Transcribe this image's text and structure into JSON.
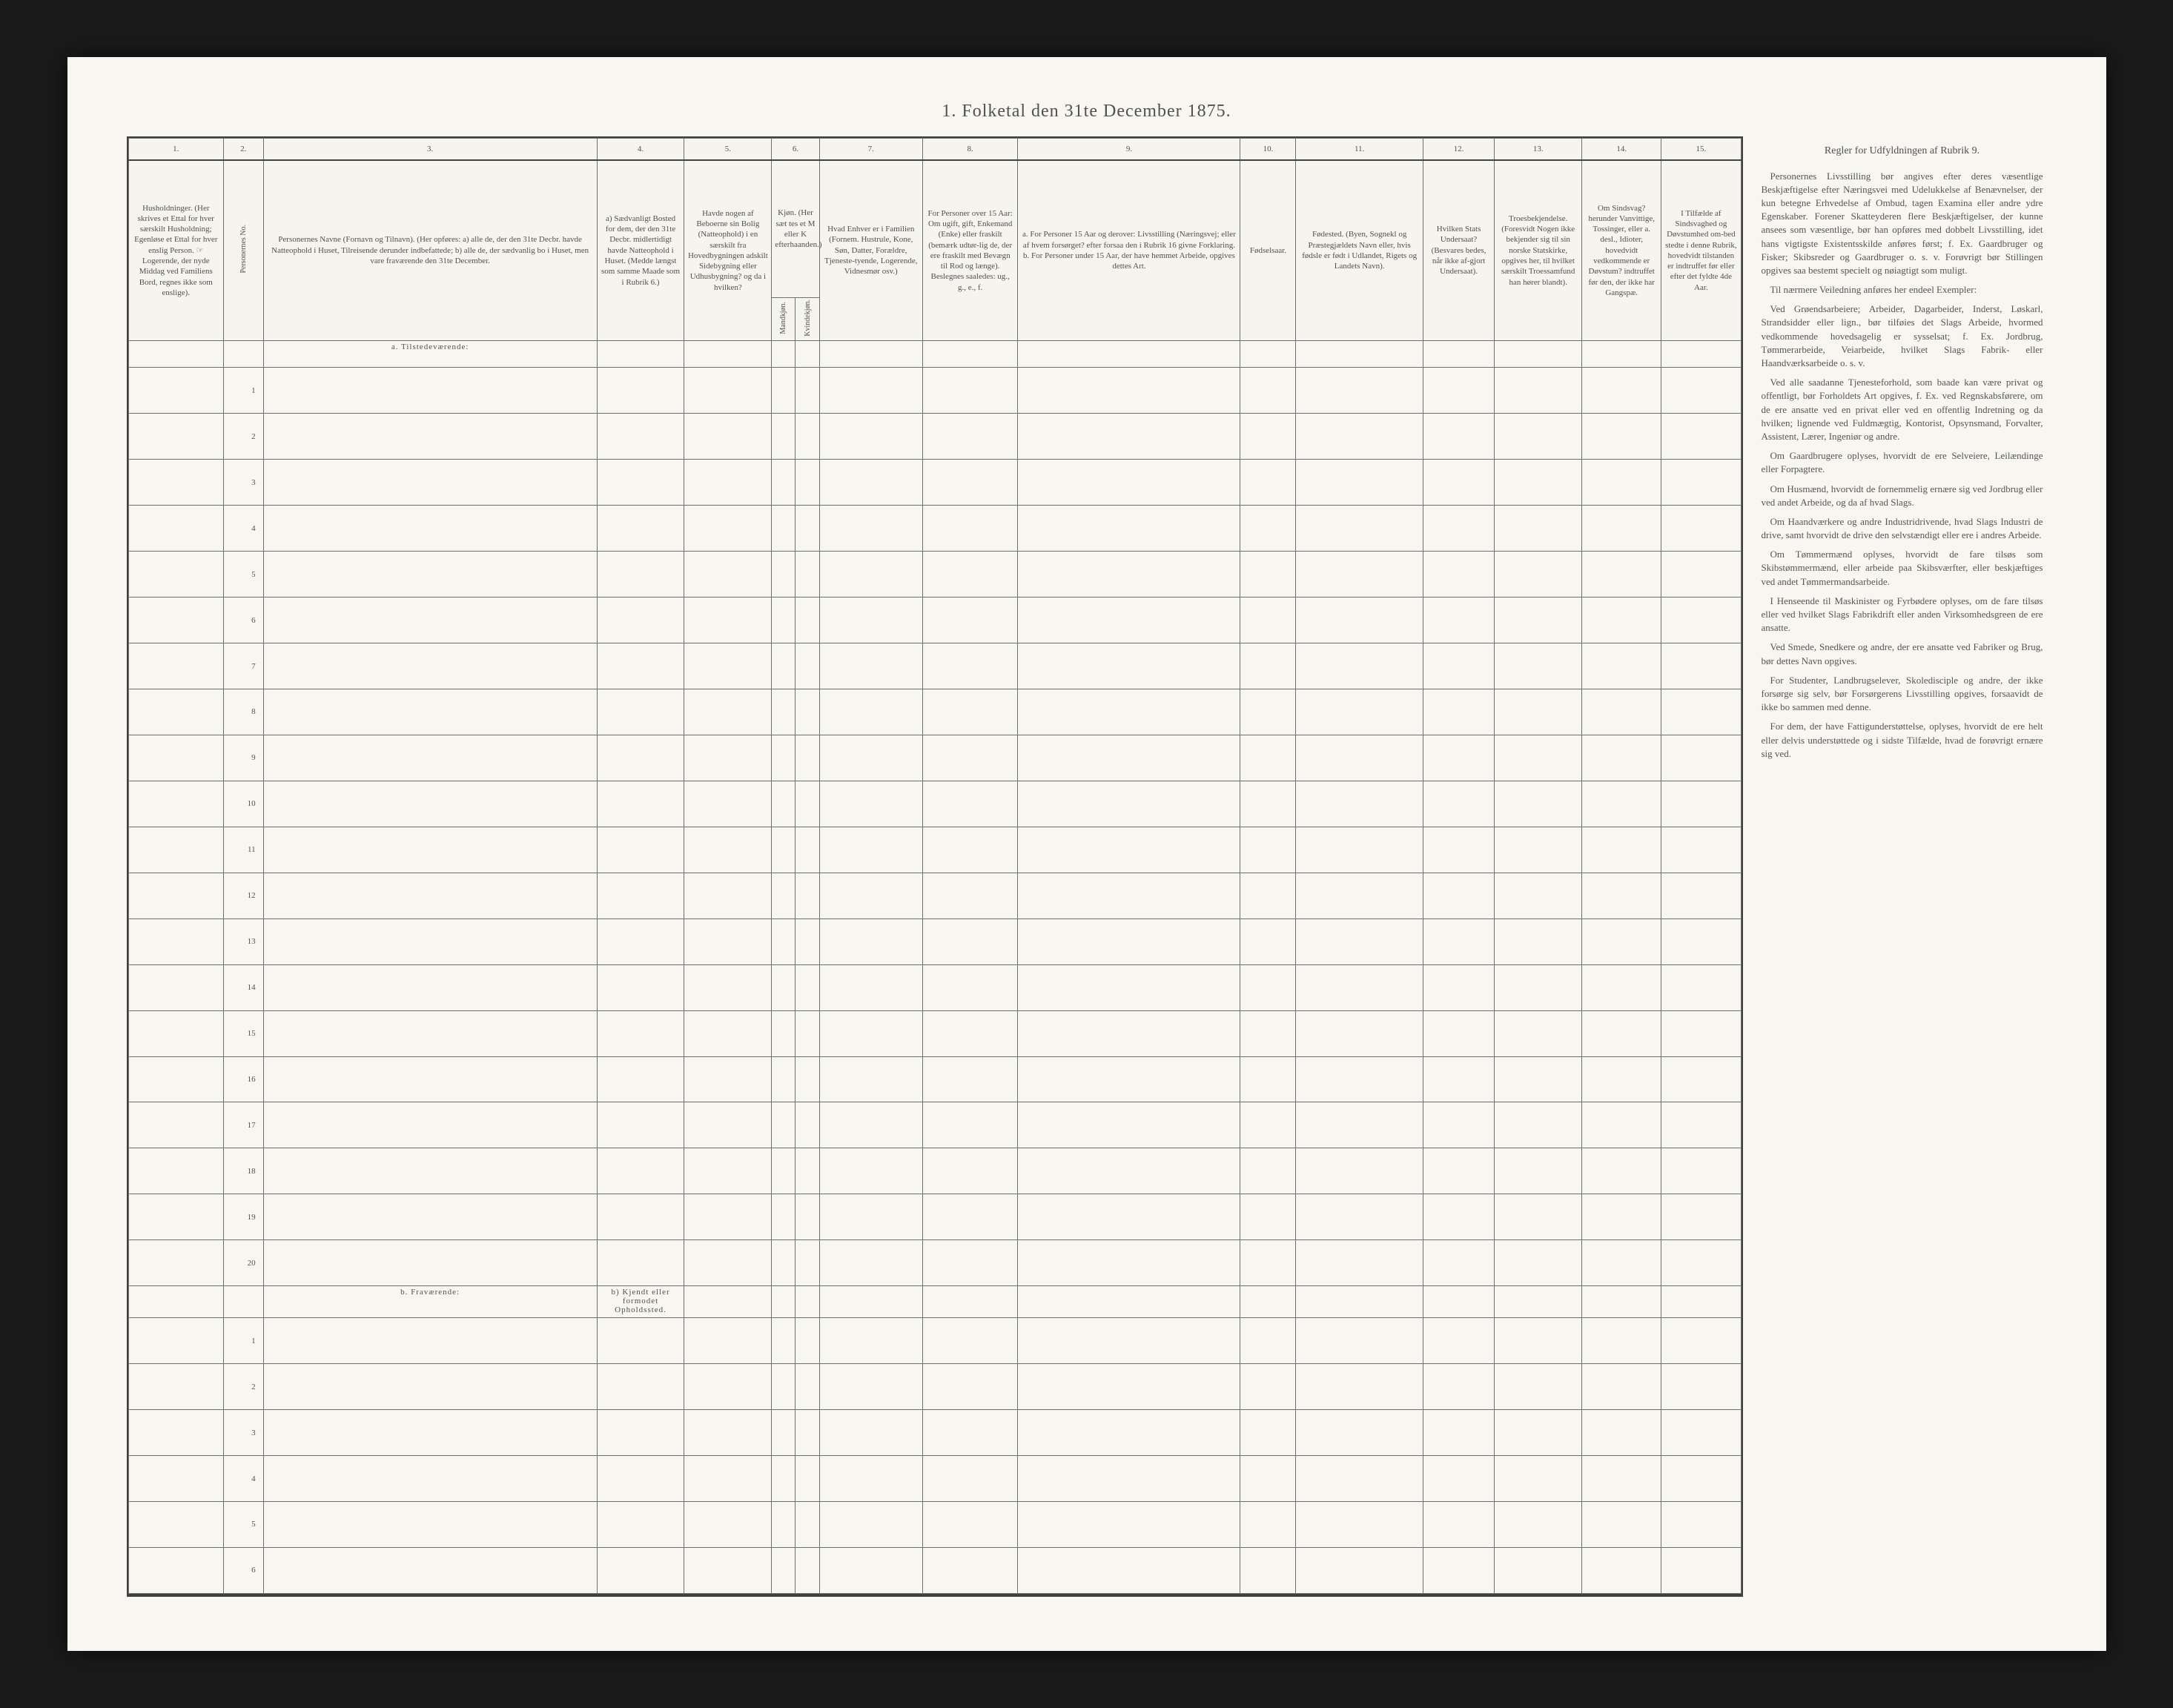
{
  "title": "1. Folketal den 31te December 1875.",
  "columns": {
    "c1": {
      "num": "1.",
      "header": "Husholdninger.\n(Her skrives et Ettal for hver særskilt Husholdning; Egenløse et Ettal for hver enslig Person.\n☞ Logerende, der nyde Middag ved Familiens Bord, regnes ikke som enslige)."
    },
    "c2": {
      "num": "2.",
      "header": "Personernes No."
    },
    "c3": {
      "num": "3.",
      "header": "Personernes Navne (Fornavn og Tilnavn).\n(Her opføres:\na) alle de, der den 31te Decbr. havde Natteophold i Huset, Tilreisende derunder indbefattede;\nb) alle de, der sædvanlig bo i Huset, men vare fraværende den 31te December."
    },
    "c4": {
      "num": "4.",
      "header": "a) Sædvanligt Bosted for dem, der den 31te Decbr. midlertidigt havde Natteophold i Huset.\n(Medde længst som samme Maade som i Rubrik 6.)"
    },
    "c5": {
      "num": "5.",
      "header": "Havde nogen af Beboerne sin Bolig (Natteophold) i en særskilt fra Hovedbygningen adskilt Sidebygning eller Udhusbygning? og da i hvilken?"
    },
    "c6": {
      "num": "6.",
      "header": "Kjøn.\n(Her sæt tes et M eller K efterhaanden.)",
      "sub_a": "Mandkjøn.",
      "sub_b": "Kvindekjøn."
    },
    "c7": {
      "num": "7.",
      "header": "Hvad Enhver er i Familien\n(Fornem. Hustrule, Kone, Søn, Datter, Forældre, Tjeneste-tyende, Logerende, Vidnesmør osv.)"
    },
    "c8": {
      "num": "8.",
      "header": "For Personer over 15 Aar:\nOm ugift, gift, Enkemand (Enke) eller fraskilt (bemærk udtør-lig de, der ere fraskilt med Bevægn til Rod og længe).\nBeslegnes saaledes: ug., g., e., f."
    },
    "c9": {
      "num": "9.",
      "header": "a. For Personer 15 Aar og derover: Livsstilling (Næringsvej; eller af hvem forsørget? efter forsaa den i Rubrik 16 givne Forklaring.\nb. For Personer under 15 Aar, der have hemmet Arbeide, opgives dettes Art."
    },
    "c10": {
      "num": "10.",
      "header": "Fødselsaar."
    },
    "c11": {
      "num": "11.",
      "header": "Fødested.\n(Byen, Sognekl og Præstegjældets Navn eller, hvis fødsle er født i Udlandet, Rigets og Landets Navn)."
    },
    "c12": {
      "num": "12.",
      "header": "Hvilken Stats Undersaat?\n(Besvares bedes, når ikke af-gjort Undersaat)."
    },
    "c13": {
      "num": "13.",
      "header": "Troesbekjendelse.\n(Foresvidt Nogen ikke bekjender sig til sin norske Statskirke, opgives her, til hvilket særskilt Troessamfund han hører blandt)."
    },
    "c14": {
      "num": "14.",
      "header": "Om Sindsvag? herunder Vanvittige, Tossinger, eller a. desl., Idioter, hovedvidt vedkommende er Døvstum? indtruffet før den, der ikke har Gangspæ."
    },
    "c15": {
      "num": "15.",
      "header": "I Tilfælde af Sindsvaghed og Døvstumhed om-bed stedte i denne Rubrik, hovedvidt tilstanden er indtruffet før eller efter det fyldte 4de Aar."
    }
  },
  "instructions_title": "Regler for Udfyldningen\naf\nRubrik 9.",
  "instructions": [
    "Personernes Livsstilling bør angives efter deres væsentlige Beskjæftigelse efter Næringsvei med Udelukkelse af Benævnelser, der kun betegne Erhvedelse af Ombud, tagen Examina eller andre ydre Egenskaber. Forener Skatteyderen flere Beskjæftigelser, der kunne ansees som væsentlige, bør han opføres med dobbelt Livsstilling, idet hans vigtigste Existentsskilde anføres først; f. Ex. Gaardbruger og Fisker; Skibsreder og Gaardbruger o. s. v. Forøvrigt bør Stillingen opgives saa bestemt specielt og nøiagtigt som muligt.",
    "Til nærmere Veiledning anføres her endeel Exempler:",
    "Ved Grøendsarbeiere; Arbeider, Dagarbeider, Inderst, Løskarl, Strandsidder eller lign., bør tilføies det Slags Arbeide, hvormed vedkommende hovedsagelig er sysselsat; f. Ex. Jordbrug, Tømmerarbeide, Veiarbeide, hvilket Slags Fabrik- eller Haandværksarbeide o. s. v.",
    "Ved alle saadanne Tjenesteforhold, som baade kan være privat og offentligt, bør Forholdets Art opgives, f. Ex. ved Regnskabsførere, om de ere ansatte ved en privat eller ved en offentlig Indretning og da hvilken; lignende ved Fuldmægtig, Kontorist, Opsynsmand, Forvalter, Assistent, Lærer, Ingeniør og andre.",
    "Om Gaardbrugere oplyses, hvorvidt de ere Selveiere, Leilændinge eller Forpagtere.",
    "Om Husmænd, hvorvidt de fornemmelig ernære sig ved Jordbrug eller ved andet Arbeide, og da af hvad Slags.",
    "Om Haandværkere og andre Industridrivende, hvad Slags Industri de drive, samt hvorvidt de drive den selvstændigt eller ere i andres Arbeide.",
    "Om Tømmermænd oplyses, hvorvidt de fare tilsøs som Skibstømmermænd, eller arbeide paa Skibsværfter, eller beskjæftiges ved andet Tømmermandsarbeide.",
    "I Henseende til Maskinister og Fyrbødere oplyses, om de fare tilsøs eller ved hvilket Slags Fabrikdrift eller anden Virksomhedsgreen de ere ansatte.",
    "Ved Smede, Snedkere og andre, der ere ansatte ved Fabriker og Brug, bør dettes Navn opgives.",
    "For Studenter, Landbrugselever, Skoledisciple og andre, der ikke forsørge sig selv, bør Forsørgerens Livsstilling opgives, forsaavidt de ikke bo sammen med denne.",
    "For dem, der have Fattigunderstøttelse, oplyses, hvorvidt de ere helt eller delvis understøttede og i sidste Tilfælde, hvad de forøvrigt ernære sig ved."
  ],
  "sections": {
    "present": "a. Tilstedeværende:",
    "absent": "b. Fraværende:",
    "absent_col4": "b) Kjendt eller formodet Opholdssted."
  },
  "present_count": 20,
  "absent_count": 6
}
